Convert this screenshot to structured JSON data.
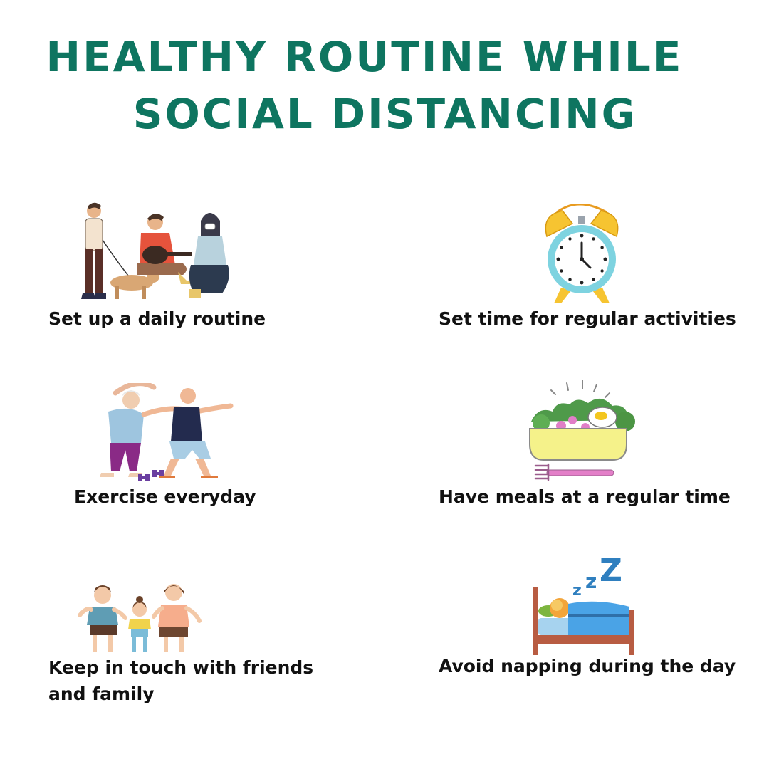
{
  "title": {
    "line1": "HEALTHY ROUTINE WHILE",
    "line2": "SOCIAL DISTANCING"
  },
  "items": [
    {
      "caption": "Set up a daily routine",
      "icon": "people-walking-dog-guitar-icon"
    },
    {
      "caption": "Set time for regular activities",
      "icon": "alarm-clock-icon"
    },
    {
      "caption": "Exercise everyday",
      "icon": "seniors-exercising-icon"
    },
    {
      "caption": "Have meals at a regular time",
      "icon": "salad-bowl-fork-icon"
    },
    {
      "caption_line1": "Keep in touch with friends",
      "caption_line2": "and family",
      "icon": "family-icon"
    },
    {
      "caption": "Avoid napping during the day",
      "icon": "sleeping-bed-icon"
    }
  ],
  "colors": {
    "title": "#0e7560",
    "text": "#111111"
  }
}
